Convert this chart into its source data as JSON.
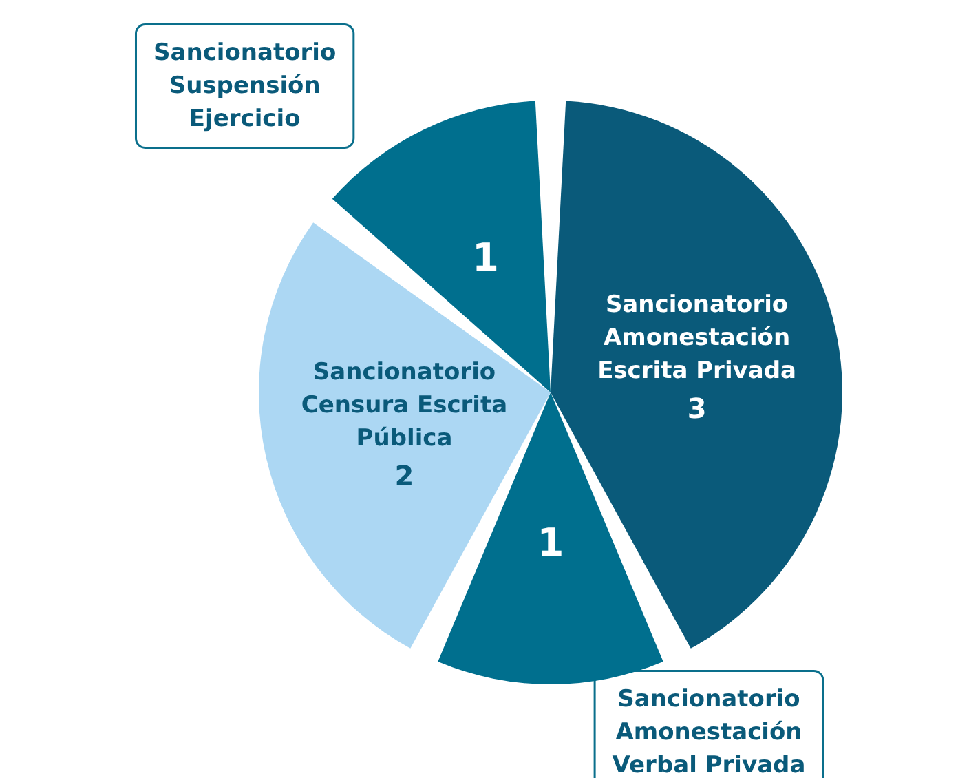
{
  "chart_data": {
    "type": "pie",
    "categories": [
      "Sancionatorio Amonestación Escrita Privada",
      "Sancionatorio Amonestación Verbal Privada",
      "Sancionatorio Censura Escrita Pública",
      "Sancionatorio Suspensión Ejercicio"
    ],
    "values": [
      3,
      1,
      2,
      1
    ],
    "colors": [
      "#0a5a7a",
      "#006f8e",
      "#acd7f3",
      "#006f8e"
    ],
    "data_labels": true,
    "legend": false
  }
}
